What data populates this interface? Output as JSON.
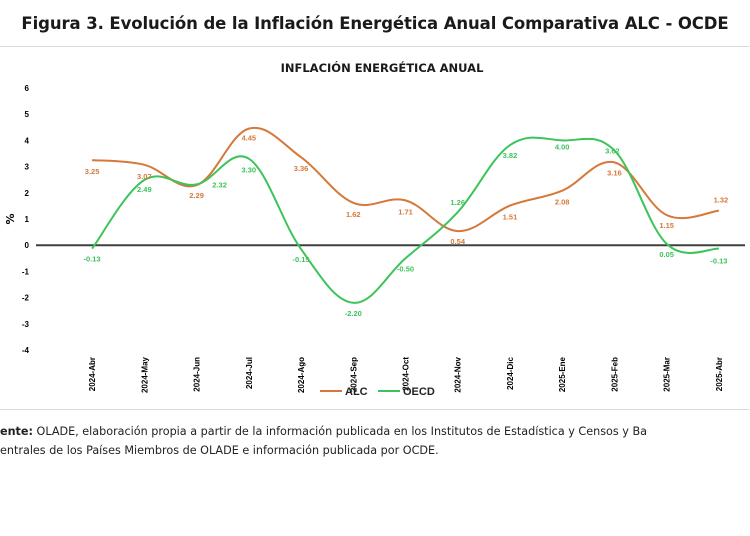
{
  "figure": {
    "title": "Figura 3. Evolución de la Inflación Energética Anual Comparativa ALC - OCDE",
    "source_label": "ente:",
    "source_line1": "OLADE, elaboración propia a partir de la información publicada en los Institutos de Estadística y Censos y Ba",
    "source_line2": "entrales de los Países Miembros de OLADE e información publicada por OCDE."
  },
  "colors": {
    "alc": "#d4793a",
    "oecd": "#3cc45a",
    "zero_line": "#404040",
    "axis_text": "#000000"
  },
  "chart_data": {
    "type": "line",
    "title": "INFLACIÓN ENERGÉTICA ANUAL",
    "xlabel": "",
    "ylabel": "%",
    "ylim": [
      -4,
      6
    ],
    "yticks": [
      "6",
      "5",
      "4",
      "3",
      "2",
      "1",
      "0",
      "-1",
      "-2",
      "-3",
      "-4"
    ],
    "grid": false,
    "legend_position": "bottom",
    "categories": [
      "2024-Abr",
      "2024-May",
      "2024-Jun",
      "2024-Jul",
      "2024-Ago",
      "2024-Sep",
      "2024-Oct",
      "2024-Nov",
      "2024-Dic",
      "2025-Ene",
      "2025-Feb",
      "2025-Mar",
      "2025-Abr"
    ],
    "series": [
      {
        "name": "ALC",
        "values": [
          3.25,
          3.07,
          2.29,
          4.45,
          3.36,
          1.62,
          1.71,
          0.54,
          1.51,
          2.08,
          3.16,
          1.15,
          1.32
        ],
        "labels": [
          "3.25",
          "3.07",
          "2.29",
          "4.45",
          "3.36",
          "1.62",
          "1.71",
          "0.54",
          "1.51",
          "2.08",
          "3.16",
          "1.15",
          "1.32"
        ]
      },
      {
        "name": "OECD",
        "values": [
          -0.13,
          2.49,
          2.32,
          3.3,
          -0.15,
          -2.2,
          -0.5,
          1.26,
          3.82,
          4.0,
          3.62,
          0.05,
          -0.13
        ],
        "labels": [
          "-0.13",
          "2.49",
          "2.32",
          "3.30",
          "-0.15",
          "-2.20",
          "-0.50",
          "1.26",
          "3.82",
          "4.00",
          "3.62",
          "0.05",
          "-0.13"
        ]
      }
    ]
  }
}
